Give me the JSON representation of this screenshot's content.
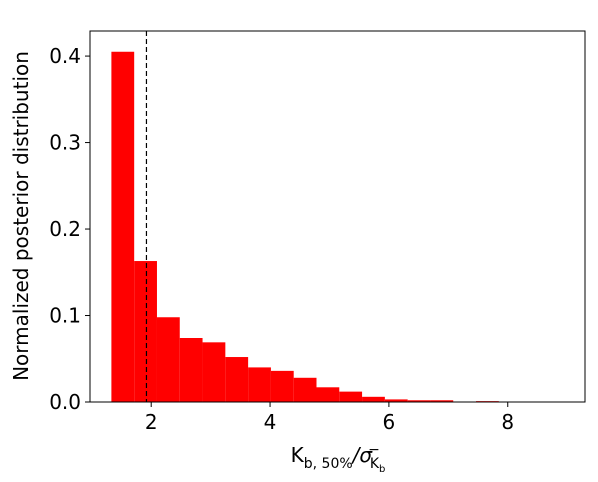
{
  "chart_data": {
    "type": "histogram",
    "ylabel": "Normalized posterior distribution",
    "xlabel": {
      "main": "K",
      "sub": "b, 50%",
      "slash": "/σ",
      "sup": "−",
      "sub2": "K",
      "subsub": "b"
    },
    "bins": [
      1.33,
      1.7135,
      2.097,
      2.4805,
      2.864,
      3.2475,
      3.631,
      4.0145,
      4.398,
      4.7815,
      5.165,
      5.5485,
      5.932,
      6.3155,
      6.699,
      7.0825,
      7.466,
      7.8495,
      8.233,
      8.6165,
      9.0
    ],
    "values": [
      0.405,
      0.163,
      0.098,
      0.074,
      0.069,
      0.052,
      0.04,
      0.036,
      0.028,
      0.017,
      0.012,
      0.006,
      0.003,
      0.002,
      0.002,
      0,
      0.001,
      0,
      0,
      0
    ],
    "color": "#ff0000",
    "vline": 1.92,
    "xlim": [
      0.97,
      9.3
    ],
    "xticks": [
      2,
      4,
      6,
      8
    ],
    "ylim": [
      0,
      0.429
    ],
    "yticks": [
      {
        "value": 0,
        "label": "0.0"
      },
      {
        "value": 0.1,
        "label": "0.1"
      },
      {
        "value": 0.2,
        "label": "0.2"
      },
      {
        "value": 0.3,
        "label": "0.3"
      },
      {
        "value": 0.4,
        "label": "0.4"
      }
    ]
  }
}
